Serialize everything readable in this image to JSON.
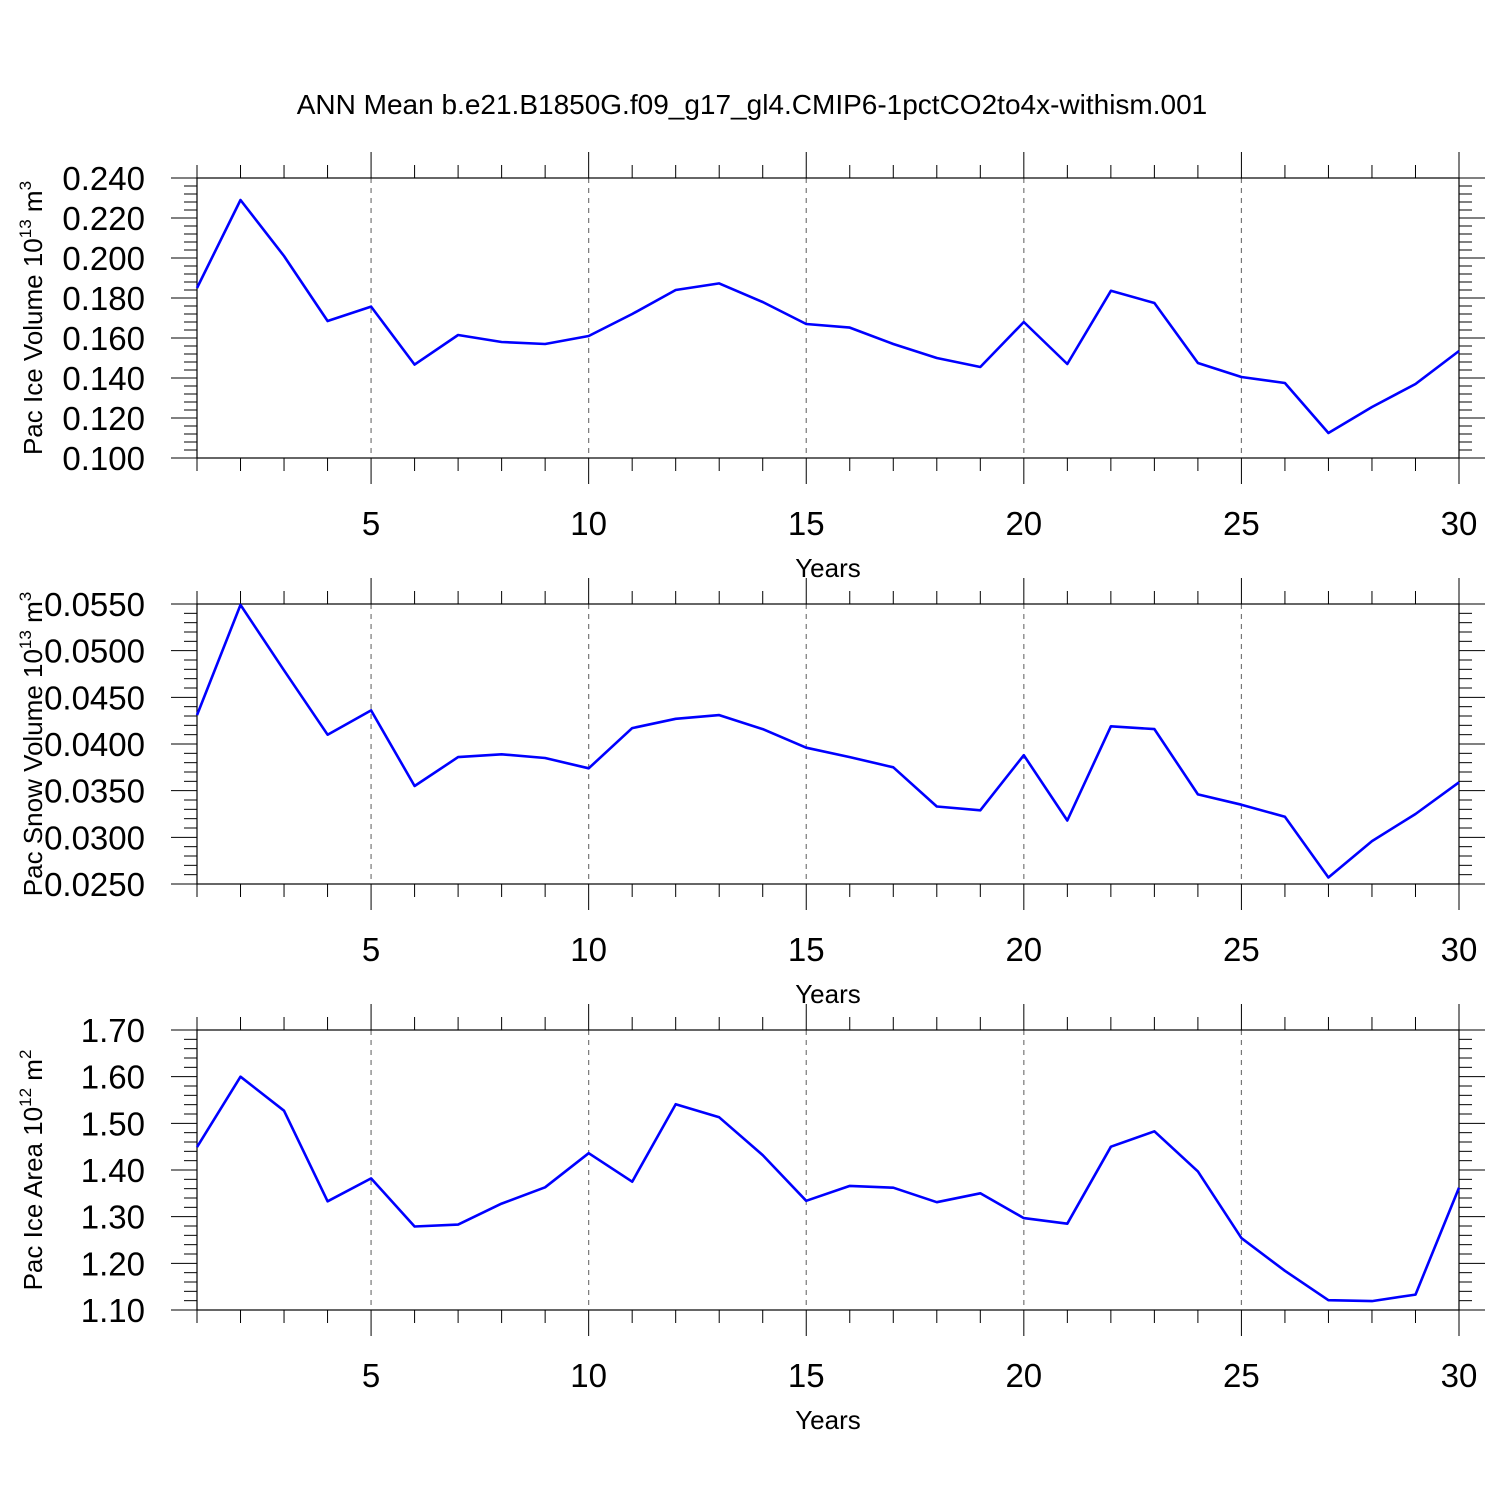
{
  "title": "ANN Mean b.e21.B1850G.f09_g17_gl4.CMIP6-1pctCO2to4x-withism.001",
  "line_color": "#0000ff",
  "chart_data": [
    {
      "type": "line",
      "xlabel": "Years",
      "ylabel": {
        "prefix": "Pac Ice Volume 10",
        "exponent": "13",
        "unit": "m",
        "unit_exponent": "3"
      },
      "xlim": [
        1,
        30
      ],
      "ylim": [
        0.1,
        0.24
      ],
      "xticks": [
        5,
        10,
        15,
        20,
        25,
        30
      ],
      "yticks": [
        "0.100",
        "0.120",
        "0.140",
        "0.160",
        "0.180",
        "0.200",
        "0.220",
        "0.240"
      ],
      "grid_x": [
        5,
        10,
        15,
        20,
        25
      ],
      "x": [
        1,
        2,
        3,
        4,
        5,
        6,
        7,
        8,
        9,
        10,
        11,
        12,
        13,
        14,
        15,
        16,
        17,
        18,
        19,
        20,
        21,
        22,
        23,
        24,
        25,
        26,
        27,
        28,
        29,
        30
      ],
      "series": [
        {
          "values": [
            0.185,
            0.229,
            0.201,
            0.1685,
            0.1757,
            0.1467,
            0.1615,
            0.158,
            0.157,
            0.161,
            0.172,
            0.184,
            0.1873,
            0.178,
            0.167,
            0.1652,
            0.157,
            0.15,
            0.1455,
            0.168,
            0.147,
            0.1836,
            0.1775,
            0.1475,
            0.1405,
            0.1375,
            0.1125,
            0.1255,
            0.137,
            0.1535
          ]
        }
      ]
    },
    {
      "type": "line",
      "xlabel": "Years",
      "ylabel": {
        "prefix": "Pac Snow Volume 10",
        "exponent": "13",
        "unit": "m",
        "unit_exponent": "3"
      },
      "xlim": [
        1,
        30
      ],
      "ylim": [
        0.025,
        0.055
      ],
      "xticks": [
        5,
        10,
        15,
        20,
        25,
        30
      ],
      "yticks": [
        "0.0250",
        "0.0300",
        "0.0350",
        "0.0400",
        "0.0450",
        "0.0500",
        "0.0550"
      ],
      "grid_x": [
        5,
        10,
        15,
        20,
        25
      ],
      "x": [
        1,
        2,
        3,
        4,
        5,
        6,
        7,
        8,
        9,
        10,
        11,
        12,
        13,
        14,
        15,
        16,
        17,
        18,
        19,
        20,
        21,
        22,
        23,
        24,
        25,
        26,
        27,
        28,
        29,
        30
      ],
      "series": [
        {
          "values": [
            0.0431,
            0.0549,
            0.0479,
            0.041,
            0.0436,
            0.0355,
            0.0386,
            0.0389,
            0.0385,
            0.0374,
            0.0417,
            0.0427,
            0.0431,
            0.0416,
            0.0396,
            0.0386,
            0.0375,
            0.0333,
            0.0329,
            0.0388,
            0.0318,
            0.0419,
            0.0416,
            0.0346,
            0.0335,
            0.0322,
            0.0257,
            0.0296,
            0.0325,
            0.0359
          ]
        }
      ]
    },
    {
      "type": "line",
      "xlabel": "Years",
      "ylabel": {
        "prefix": "Pac Ice Area 10",
        "exponent": "12",
        "unit": "m",
        "unit_exponent": "2"
      },
      "xlim": [
        1,
        30
      ],
      "ylim": [
        1.1,
        1.7
      ],
      "xticks": [
        5,
        10,
        15,
        20,
        25,
        30
      ],
      "yticks": [
        "1.10",
        "1.20",
        "1.30",
        "1.40",
        "1.50",
        "1.60",
        "1.70"
      ],
      "grid_x": [
        5,
        10,
        15,
        20,
        25
      ],
      "x": [
        1,
        2,
        3,
        4,
        5,
        6,
        7,
        8,
        9,
        10,
        11,
        12,
        13,
        14,
        15,
        16,
        17,
        18,
        19,
        20,
        21,
        22,
        23,
        24,
        25,
        26,
        27,
        28,
        29,
        30
      ],
      "series": [
        {
          "values": [
            1.449,
            1.6,
            1.527,
            1.333,
            1.382,
            1.279,
            1.283,
            1.328,
            1.363,
            1.436,
            1.375,
            1.541,
            1.513,
            1.432,
            1.334,
            1.366,
            1.362,
            1.331,
            1.35,
            1.297,
            1.285,
            1.45,
            1.483,
            1.397,
            1.254,
            1.184,
            1.121,
            1.119,
            1.133,
            1.362
          ]
        }
      ]
    }
  ]
}
